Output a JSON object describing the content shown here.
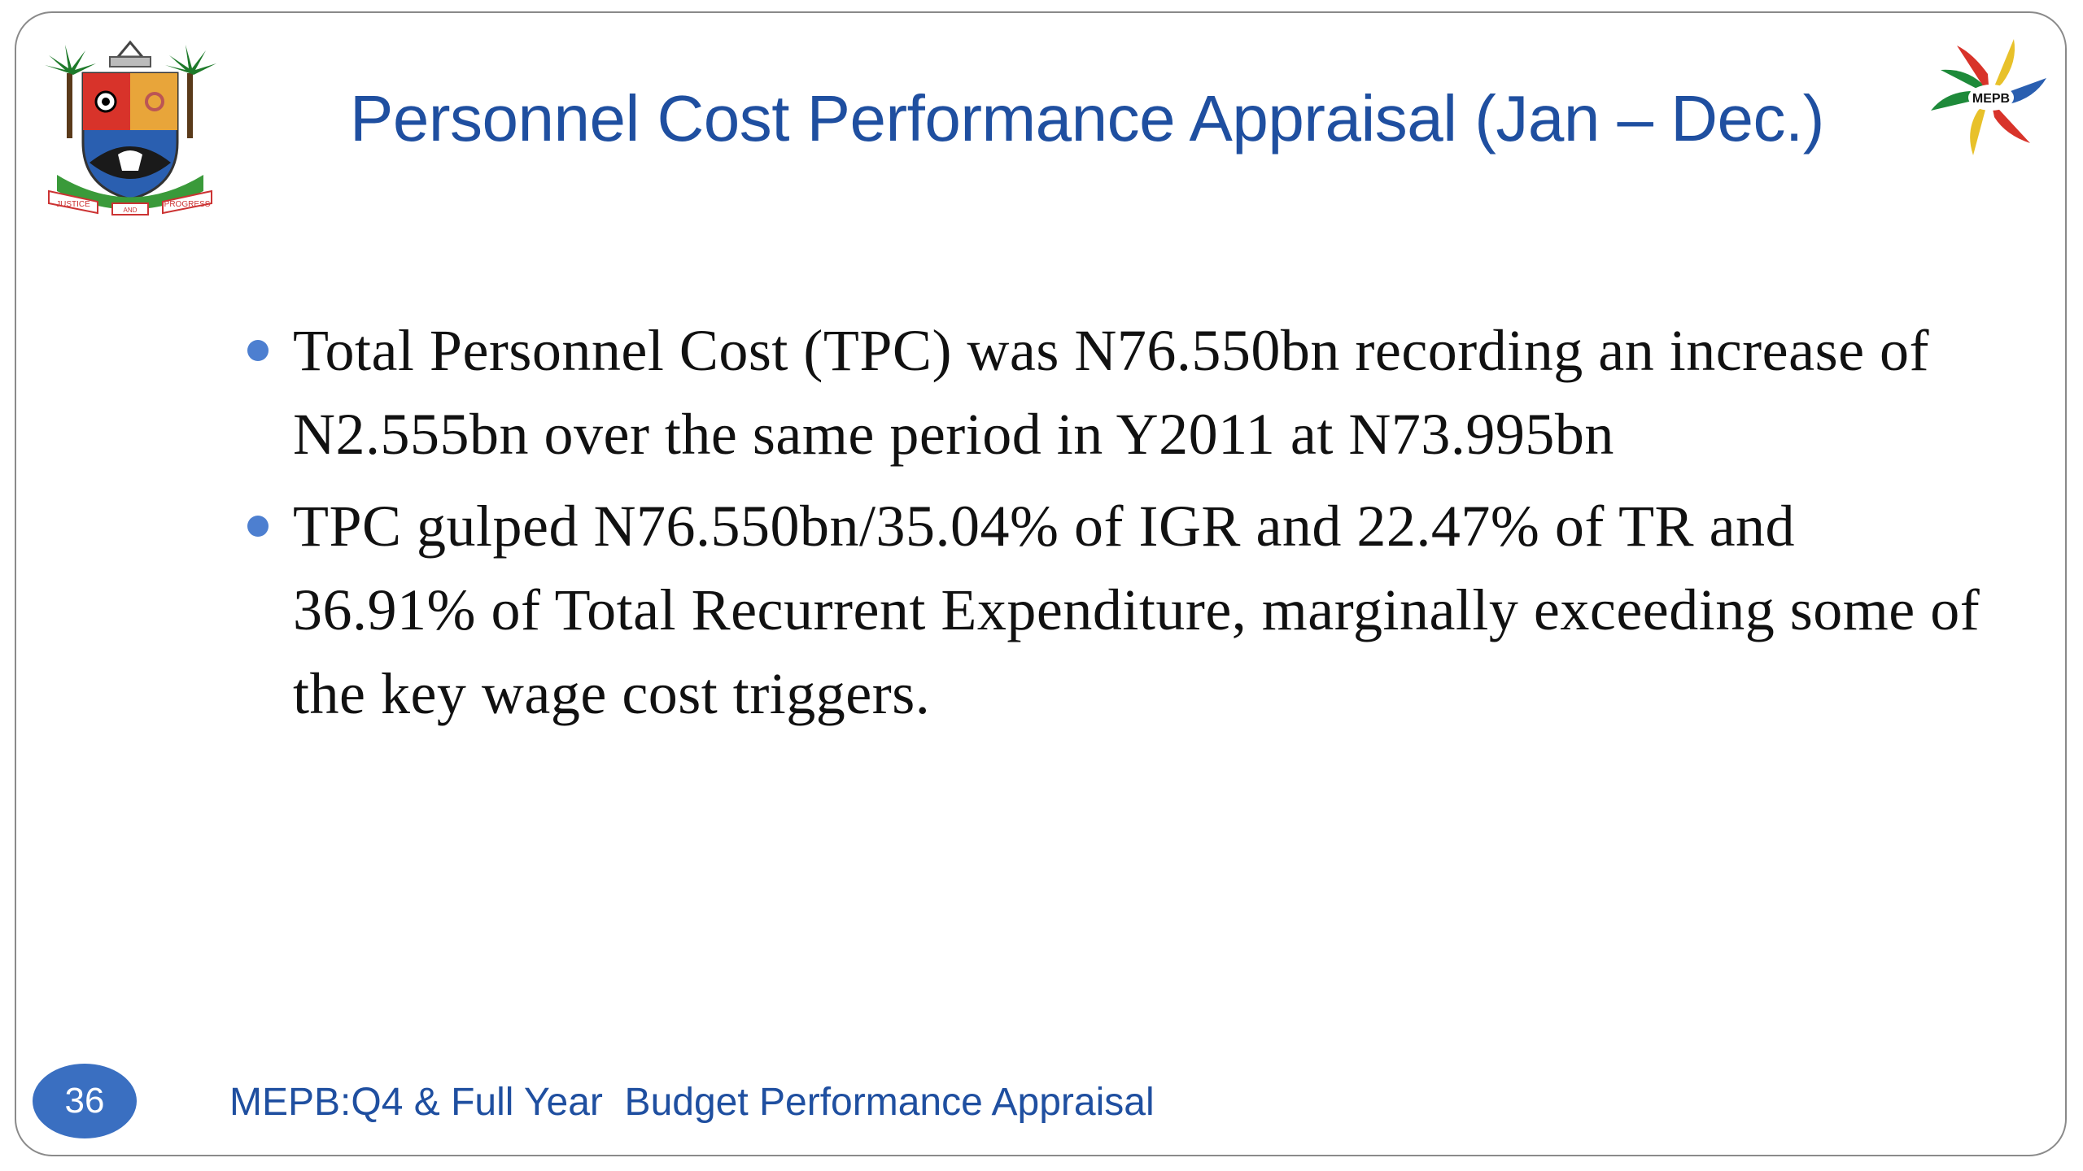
{
  "slide": {
    "title": "Personnel Cost Performance Appraisal (Jan – Dec.)",
    "bullets": [
      {
        "text": "Total Personnel Cost  (TPC) was N76.550bn recording an increase of N2.555bn over the same period in Y2011 at N73.995bn"
      },
      {
        "text": "TPC gulped N76.550bn/35.04% of IGR and 22.47% of TR and 36.91% of Total Recurrent Expenditure, marginally exceeding some of the key wage cost triggers."
      }
    ],
    "page_number": "36",
    "footer": "MEPB:Q4 & Full Year  Budget Performance Appraisal"
  },
  "logos": {
    "left_icon": "coat-of-arms-icon",
    "left_text": [
      "JUSTICE",
      "AND",
      "PROGRESS"
    ],
    "right_icon": "mepb-logo-icon",
    "right_text": "MEPB"
  },
  "colors": {
    "title": "#1f4fa0",
    "bullet_dot": "#4d7fd0",
    "page_badge": "#3a6fc1",
    "border": "#8a8a8a"
  }
}
